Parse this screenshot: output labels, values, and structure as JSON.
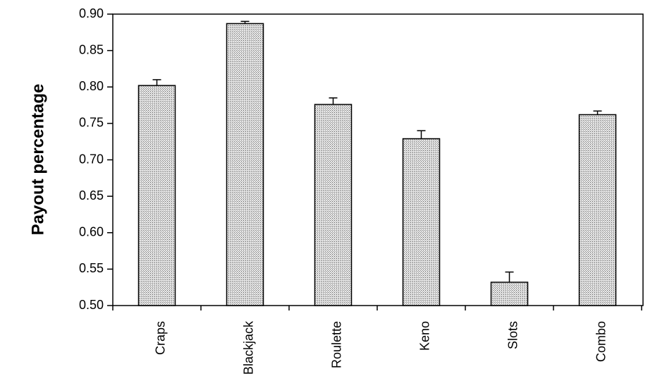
{
  "chart_data": {
    "type": "bar",
    "title": "",
    "xlabel": "",
    "ylabel": "Payout percentage",
    "categories": [
      "Craps",
      "Blackjack",
      "Roulette",
      "Keno",
      "Slots",
      "Combo"
    ],
    "values": [
      0.802,
      0.887,
      0.776,
      0.729,
      0.532,
      0.762
    ],
    "error": [
      0.008,
      0.003,
      0.009,
      0.011,
      0.014,
      0.005
    ],
    "ylim": [
      0.5,
      0.9
    ],
    "yticks": [
      "0.50",
      "0.55",
      "0.60",
      "0.65",
      "0.70",
      "0.75",
      "0.80",
      "0.85",
      "0.90"
    ],
    "grid": false,
    "legend": "none",
    "bar_color": "#c8c8c8"
  }
}
